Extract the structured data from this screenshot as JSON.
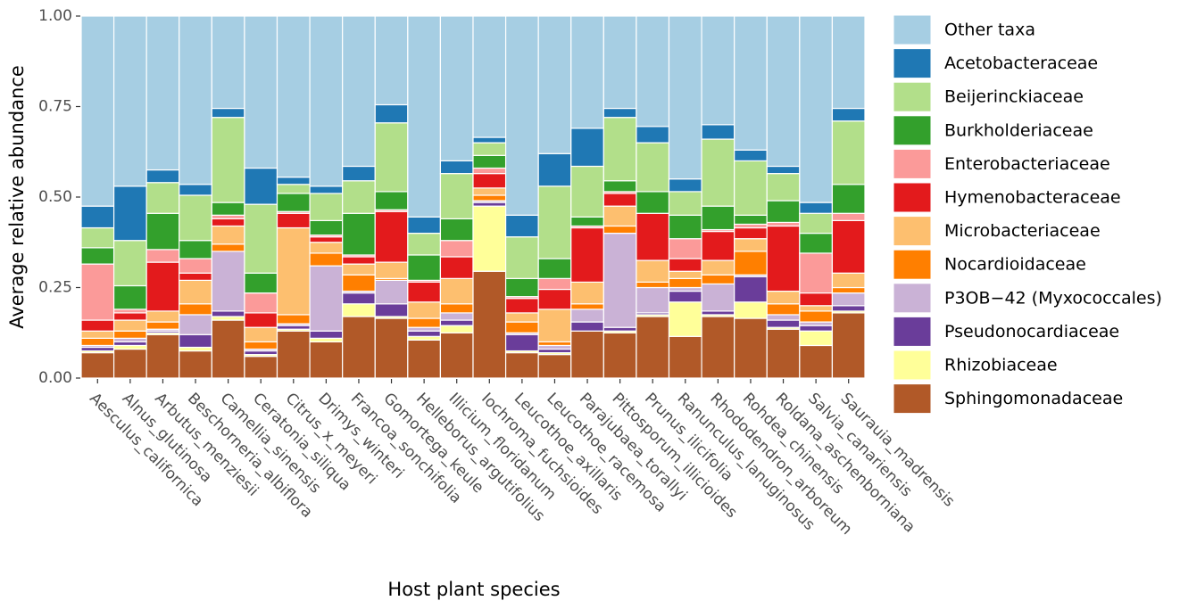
{
  "chart_data": {
    "type": "stacked-bar",
    "x_label": "Host plant species",
    "y_label": "Average relative abundance",
    "categories": [
      "Aesculus_californica",
      "Alnus_glutinosa",
      "Arbutus_menziesii",
      "Beschorneria_albiflora",
      "Camellia_sinensis",
      "Ceratonia_siliqua",
      "Citrus_x_meyeri",
      "Drimys_winteri",
      "Francoa_sonchifolia",
      "Gomortega_keule",
      "Helleborus_argutifolius",
      "Illicium_floridanum",
      "Iochroma_fuchsioides",
      "Leucothoe_axillaris",
      "Leucothoe_racemosa",
      "Parajubaea_torallyi",
      "Pittosporum_illicioides",
      "Prunus_ilicifolia",
      "Ranunculus_lanuginosus",
      "Rhododendron_arboreum",
      "Rohdea_chinensis",
      "Roldana_aschenborniana",
      "Salvia_canariensis",
      "Saurauia_madrensis"
    ],
    "ylim": [
      0,
      1
    ],
    "yticks": [
      {
        "value": 0,
        "label": "0.00"
      },
      {
        "value": 0.25,
        "label": "0.25"
      },
      {
        "value": 0.5,
        "label": "0.50"
      },
      {
        "value": 0.75,
        "label": "0.75"
      },
      {
        "value": 1,
        "label": "1.00"
      }
    ],
    "grid": false,
    "legend": "right",
    "series": [
      {
        "name": "Other taxa",
        "color": "#a6cee3",
        "values": [
          0.525,
          0.47,
          0.425,
          0.465,
          0.255,
          0.42,
          0.445,
          0.47,
          0.415,
          0.245,
          0.555,
          0.4,
          0.335,
          0.55,
          0.38,
          0.31,
          0.255,
          0.305,
          0.45,
          0.3,
          0.37,
          0.415,
          0.515,
          0.255
        ]
      },
      {
        "name": "Acetobacteraceae",
        "color": "#1f78b4",
        "values": [
          0.06,
          0.15,
          0.035,
          0.03,
          0.025,
          0.1,
          0.02,
          0.02,
          0.04,
          0.05,
          0.045,
          0.035,
          0.015,
          0.06,
          0.09,
          0.105,
          0.025,
          0.045,
          0.035,
          0.04,
          0.03,
          0.02,
          0.03,
          0.035
        ]
      },
      {
        "name": "Beijerinckiaceae",
        "color": "#b2df8a",
        "values": [
          0.055,
          0.125,
          0.085,
          0.125,
          0.235,
          0.19,
          0.025,
          0.075,
          0.09,
          0.19,
          0.06,
          0.125,
          0.035,
          0.115,
          0.2,
          0.14,
          0.175,
          0.135,
          0.065,
          0.185,
          0.15,
          0.075,
          0.055,
          0.175
        ]
      },
      {
        "name": "Burkholderiaceae",
        "color": "#33a02c",
        "values": [
          0.045,
          0.065,
          0.1,
          0.05,
          0.035,
          0.055,
          0.05,
          0.04,
          0.115,
          0.05,
          0.07,
          0.06,
          0.035,
          0.05,
          0.055,
          0.025,
          0.03,
          0.06,
          0.065,
          0.065,
          0.025,
          0.06,
          0.055,
          0.08
        ]
      },
      {
        "name": "Enterobacteriaceae",
        "color": "#fb9a99",
        "values": [
          0.155,
          0.01,
          0.035,
          0.04,
          0.01,
          0.055,
          0.005,
          0.005,
          0.005,
          0.005,
          0.005,
          0.045,
          0.015,
          0.005,
          0.03,
          0.005,
          0.005,
          0,
          0.055,
          0.005,
          0.01,
          0.01,
          0.11,
          0.02
        ]
      },
      {
        "name": "Hymenobacteraceae",
        "color": "#e31a1c",
        "values": [
          0.03,
          0.02,
          0.135,
          0.02,
          0.02,
          0.04,
          0.04,
          0.015,
          0.02,
          0.14,
          0.055,
          0.06,
          0.04,
          0.04,
          0.055,
          0.15,
          0.035,
          0.13,
          0.035,
          0.08,
          0.03,
          0.18,
          0.035,
          0.145
        ]
      },
      {
        "name": "Microbacteriaceae",
        "color": "#fdbf6f",
        "values": [
          0.02,
          0.03,
          0.03,
          0.065,
          0.05,
          0.04,
          0.24,
          0.03,
          0.03,
          0.045,
          0.045,
          0.07,
          0.02,
          0.025,
          0.09,
          0.06,
          0.055,
          0.06,
          0.02,
          0.04,
          0.035,
          0.035,
          0.015,
          0.04
        ]
      },
      {
        "name": "Nocardioidaceae",
        "color": "#ff7f00",
        "values": [
          0.02,
          0.02,
          0.02,
          0.03,
          0.02,
          0.02,
          0.025,
          0.035,
          0.045,
          0.005,
          0.025,
          0.025,
          0.015,
          0.03,
          0.01,
          0.015,
          0.02,
          0.015,
          0.025,
          0.025,
          0.065,
          0.03,
          0.03,
          0.015
        ]
      },
      {
        "name": "P3OB−42 (Myxococcales)",
        "color": "#cab2d6",
        "values": [
          0.005,
          0.01,
          0.005,
          0.055,
          0.165,
          0.005,
          0.005,
          0.18,
          0.005,
          0.065,
          0.01,
          0.02,
          0.005,
          0.005,
          0.01,
          0.035,
          0.26,
          0.07,
          0.01,
          0.075,
          0.005,
          0.015,
          0.01,
          0.035
        ]
      },
      {
        "name": "Pseudonocardiaceae",
        "color": "#6a3d9a",
        "values": [
          0.01,
          0.01,
          0.005,
          0.035,
          0.015,
          0.01,
          0.01,
          0.02,
          0.03,
          0.035,
          0.015,
          0.015,
          0.01,
          0.045,
          0.01,
          0.025,
          0.01,
          0.005,
          0.03,
          0.01,
          0.07,
          0.02,
          0.015,
          0.015
        ]
      },
      {
        "name": "Rhizobiaceae",
        "color": "#ffff99",
        "values": [
          0.005,
          0.01,
          0.005,
          0.01,
          0.01,
          0.005,
          0.005,
          0.01,
          0.035,
          0.005,
          0.01,
          0.02,
          0.18,
          0.005,
          0.005,
          0,
          0.005,
          0.005,
          0.095,
          0.005,
          0.045,
          0.005,
          0.04,
          0.005
        ]
      },
      {
        "name": "Sphingomonadaceae",
        "color": "#b15928",
        "values": [
          0.07,
          0.08,
          0.12,
          0.075,
          0.16,
          0.06,
          0.13,
          0.1,
          0.17,
          0.165,
          0.105,
          0.125,
          0.295,
          0.07,
          0.065,
          0.13,
          0.125,
          0.17,
          0.115,
          0.17,
          0.165,
          0.135,
          0.09,
          0.18
        ]
      }
    ]
  }
}
